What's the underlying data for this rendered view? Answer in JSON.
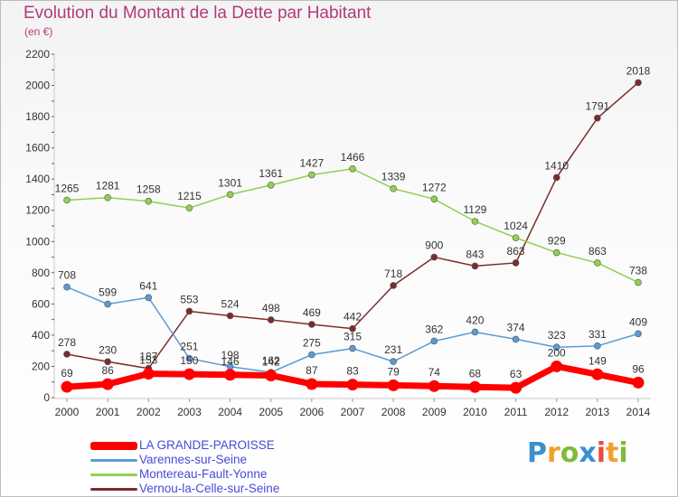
{
  "title": "Evolution du Montant de la Dette par Habitant",
  "subtitle": "(en €)",
  "logo": {
    "parts": [
      "P",
      "r",
      "o",
      "x",
      "i",
      "t",
      "i"
    ],
    "colors": [
      "#3a8fd0",
      "#f2a02a",
      "#7dbb3c",
      "#3a8fd0",
      "#e84c3d",
      "#f2a02a",
      "#7dbb3c"
    ]
  },
  "chart_data": {
    "type": "line",
    "title": "Evolution du Montant de la Dette par Habitant",
    "subtitle": "(en €)",
    "x": [
      "2000",
      "2001",
      "2002",
      "2003",
      "2004",
      "2005",
      "2006",
      "2007",
      "2008",
      "2009",
      "2010",
      "2011",
      "2012",
      "2013",
      "2014"
    ],
    "ylim": [
      0,
      2200
    ],
    "yticks": [
      0,
      200,
      400,
      600,
      800,
      1000,
      1200,
      1400,
      1600,
      1800,
      2000,
      2200
    ],
    "grid": false,
    "legend_position": "bottom-left",
    "series": [
      {
        "name": "LA GRANDE-PAROISSE",
        "color": "#ff0000",
        "values": [
          69,
          86,
          153,
          150,
          146,
          142,
          87,
          83,
          79,
          74,
          68,
          63,
          200,
          149,
          96
        ]
      },
      {
        "name": "Varennes-sur-Seine",
        "color": "#5b9bd5",
        "values": [
          708,
          599,
          641,
          251,
          198,
          162,
          275,
          315,
          231,
          362,
          420,
          374,
          323,
          331,
          409
        ]
      },
      {
        "name": "Montereau-Fault-Yonne",
        "color": "#92d050",
        "values": [
          1265,
          1281,
          1258,
          1215,
          1301,
          1361,
          1427,
          1466,
          1339,
          1272,
          1129,
          1024,
          929,
          863,
          738
        ]
      },
      {
        "name": "Vernou-la-Celle-sur-Seine",
        "color": "#7b2c2c",
        "values": [
          278,
          230,
          187,
          553,
          524,
          498,
          469,
          442,
          718,
          900,
          843,
          863,
          1410,
          1791,
          2018
        ]
      }
    ]
  }
}
